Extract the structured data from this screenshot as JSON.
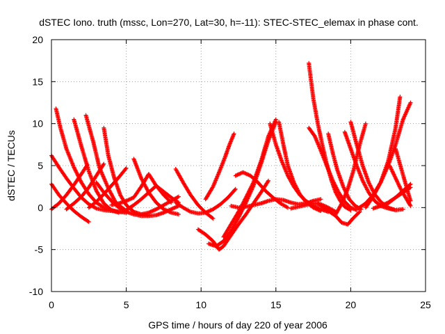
{
  "chart_data": {
    "type": "scatter",
    "title": "dSTEC Iono. truth (mssc, Lon=270, Lat=30, h=-11): STEC-STEC_elemax in phase cont.",
    "xlabel": "GPS time / hours of day 220 of year 2006",
    "ylabel": "dSTEC  / TECUs",
    "xlim": [
      0,
      25
    ],
    "ylim": [
      -10,
      20
    ],
    "xticks": [
      0,
      5,
      10,
      15,
      20,
      25
    ],
    "yticks": [
      -10,
      -5,
      0,
      5,
      10,
      15,
      20
    ],
    "grid": true,
    "marker": "plus",
    "color": "#ff0000",
    "series": [
      {
        "x": [
          0.0,
          0.5,
          1.0,
          1.5,
          2.0,
          2.5,
          3.0,
          3.5,
          4.0,
          4.5,
          5.0
        ],
        "y": [
          6.2,
          4.8,
          3.5,
          2.3,
          1.2,
          0.4,
          -0.1,
          -0.3,
          -0.4,
          -0.5,
          -0.6
        ]
      },
      {
        "x": [
          0.0,
          0.5,
          1.0,
          1.5,
          2.0,
          2.5
        ],
        "y": [
          2.8,
          1.5,
          0.5,
          -0.4,
          -1.1,
          -1.7
        ]
      },
      {
        "x": [
          0.0,
          0.5,
          1.0,
          1.5,
          2.0,
          2.4
        ],
        "y": [
          -0.2,
          0.5,
          1.5,
          2.7,
          4.0,
          5.1
        ]
      },
      {
        "x": [
          0.3,
          0.6,
          1.0,
          1.5,
          2.0,
          2.5,
          3.0,
          3.5,
          4.0,
          4.5,
          5.0
        ],
        "y": [
          11.8,
          9.5,
          7.0,
          4.8,
          3.0,
          1.6,
          0.6,
          0.0,
          -0.3,
          -0.5,
          -0.6
        ]
      },
      {
        "x": [
          1.5,
          2.0,
          2.5,
          3.0,
          3.5,
          4.0,
          4.5
        ],
        "y": [
          10.5,
          7.3,
          4.3,
          2.0,
          0.5,
          -0.3,
          -0.6
        ]
      },
      {
        "x": [
          1.0,
          1.5,
          2.0,
          2.5,
          3.0,
          3.5
        ],
        "y": [
          -0.2,
          0.5,
          1.3,
          2.4,
          3.8,
          5.2
        ]
      },
      {
        "x": [
          2.3,
          2.8,
          3.2,
          3.8,
          4.3,
          5.0
        ],
        "y": [
          11.0,
          7.8,
          4.8,
          2.3,
          0.6,
          -0.4
        ]
      },
      {
        "x": [
          3.0,
          3.5,
          4.0,
          4.5,
          5.0,
          5.5,
          6.0,
          6.5,
          7.0,
          7.5,
          8.0,
          8.5
        ],
        "y": [
          3.0,
          1.8,
          0.8,
          0.0,
          -0.5,
          -0.8,
          -1.0,
          -1.0,
          -0.9,
          -0.6,
          -0.2,
          0.2
        ]
      },
      {
        "x": [
          3.5,
          3.8,
          4.2,
          4.6,
          5.0,
          5.5,
          6.0,
          6.5
        ],
        "y": [
          9.5,
          6.2,
          3.5,
          1.5,
          0.3,
          -0.5,
          -0.8,
          -0.9
        ]
      },
      {
        "x": [
          2.5,
          3.0,
          3.5,
          4.0,
          4.5,
          5.0
        ],
        "y": [
          0.0,
          0.7,
          1.6,
          2.6,
          3.6,
          4.7
        ]
      },
      {
        "x": [
          4.0,
          4.5,
          5.0,
          5.5,
          6.0,
          6.5,
          7.0,
          7.5,
          8.0
        ],
        "y": [
          0.3,
          0.5,
          0.8,
          1.2,
          2.5,
          4.0,
          2.6,
          1.5,
          0.6
        ]
      },
      {
        "x": [
          5.5,
          6.0,
          6.5,
          7.0,
          7.5,
          8.0,
          8.5
        ],
        "y": [
          5.8,
          3.5,
          1.8,
          0.6,
          -0.2,
          -0.6,
          -0.8
        ]
      },
      {
        "x": [
          5.0,
          5.5,
          6.0,
          6.5,
          7.0,
          7.5,
          8.0,
          8.5
        ],
        "y": [
          -0.3,
          0.3,
          1.0,
          1.8,
          2.6,
          1.9,
          1.2,
          0.6
        ]
      },
      {
        "x": [
          6.0,
          6.5,
          7.0,
          7.5,
          8.0,
          8.5
        ],
        "y": [
          -0.8,
          -0.6,
          -0.2,
          0.3,
          0.8,
          1.3
        ]
      },
      {
        "x": [
          8.3,
          8.8,
          9.3,
          9.8,
          10.3,
          10.8
        ],
        "y": [
          4.6,
          3.0,
          1.5,
          0.3,
          -0.6,
          -1.3
        ]
      },
      {
        "x": [
          8.3,
          8.8,
          9.3,
          9.8,
          10.3,
          10.8,
          11.3,
          11.8,
          12.3
        ],
        "y": [
          0.6,
          0.0,
          -0.5,
          -0.7,
          -0.6,
          -0.2,
          0.4,
          1.2,
          2.2
        ]
      },
      {
        "x": [
          9.8,
          10.3,
          10.8,
          11.2,
          11.5,
          12.0,
          12.5,
          13.0,
          13.5,
          14.0,
          14.5
        ],
        "y": [
          -2.6,
          -3.2,
          -4.0,
          -5.0,
          -4.6,
          -3.3,
          -2.0,
          -0.8,
          0.5,
          1.8,
          3.2
        ]
      },
      {
        "x": [
          10.5,
          11.0,
          11.5,
          12.0,
          12.5,
          13.0,
          13.5,
          14.0,
          14.5,
          15.0
        ],
        "y": [
          -4.3,
          -4.6,
          -4.0,
          -2.8,
          -1.2,
          0.6,
          2.6,
          5.2,
          8.0,
          10.2
        ]
      },
      {
        "x": [
          10.3,
          10.8,
          11.2,
          11.6,
          11.9,
          12.2
        ],
        "y": [
          1.0,
          2.5,
          4.2,
          6.0,
          7.5,
          8.8
        ]
      },
      {
        "x": [
          11.5,
          12.0,
          12.5,
          13.0,
          13.5,
          14.0,
          14.5,
          15.0
        ],
        "y": [
          -3.5,
          -2.0,
          -0.5,
          1.2,
          3.0,
          5.5,
          8.5,
          10.5
        ]
      },
      {
        "x": [
          12.0,
          12.5,
          13.0,
          13.5,
          14.0,
          14.5,
          15.0,
          15.5,
          16.0,
          16.5,
          17.0,
          17.5,
          18.0
        ],
        "y": [
          0.2,
          0.0,
          0.1,
          0.3,
          0.5,
          0.8,
          1.0,
          0.9,
          0.6,
          0.4,
          0.5,
          0.8,
          1.0
        ]
      },
      {
        "x": [
          12.3,
          12.8,
          13.3,
          13.8,
          14.3,
          14.8,
          15.3,
          15.8
        ],
        "y": [
          3.8,
          4.2,
          3.8,
          3.0,
          2.0,
          1.2,
          0.5,
          0.0
        ]
      },
      {
        "x": [
          14.6,
          15.0,
          15.4,
          15.8,
          16.2,
          16.6,
          17.0,
          17.5,
          18.0,
          18.5
        ],
        "y": [
          10.0,
          7.5,
          5.5,
          3.8,
          2.5,
          1.5,
          0.8,
          0.2,
          -0.2,
          -0.5
        ]
      },
      {
        "x": [
          15.2,
          15.5,
          15.8,
          16.2,
          16.6,
          17.0,
          17.5,
          18.0
        ],
        "y": [
          10.2,
          7.5,
          5.0,
          3.0,
          1.6,
          0.7,
          0.0,
          -0.4
        ]
      },
      {
        "x": [
          16.0,
          16.5,
          17.0,
          17.5,
          18.0,
          18.5,
          19.0
        ],
        "y": [
          -0.1,
          0.1,
          0.3,
          0.5,
          0.4,
          0.0,
          -0.5
        ]
      },
      {
        "x": [
          17.2,
          17.5,
          17.8,
          18.1,
          18.4,
          18.7,
          19.0,
          19.3,
          19.6,
          20.0
        ],
        "y": [
          17.2,
          13.0,
          10.0,
          7.5,
          5.2,
          3.3,
          1.8,
          0.8,
          0.1,
          -0.3
        ]
      },
      {
        "x": [
          17.2,
          17.6,
          18.0,
          18.4,
          18.8,
          19.2,
          19.6,
          20.0,
          20.4
        ],
        "y": [
          9.5,
          8.5,
          6.8,
          5.0,
          3.2,
          1.8,
          0.7,
          0.0,
          -0.3
        ]
      },
      {
        "x": [
          17.8,
          18.2,
          18.6,
          19.0,
          19.4,
          19.8,
          20.2,
          20.6
        ],
        "y": [
          0.5,
          0.0,
          -0.5,
          -1.0,
          -1.8,
          -2.0,
          -1.2,
          -0.5
        ]
      },
      {
        "x": [
          18.5,
          18.8,
          19.1,
          19.5,
          19.9,
          20.3,
          20.7
        ],
        "y": [
          8.8,
          6.5,
          4.5,
          2.5,
          1.0,
          0.2,
          -0.2
        ]
      },
      {
        "x": [
          19.0,
          19.4,
          19.8,
          20.2,
          20.6,
          21.0
        ],
        "y": [
          -0.8,
          0.5,
          2.2,
          4.5,
          7.5,
          10.0
        ]
      },
      {
        "x": [
          20.0,
          20.4,
          20.8,
          21.2,
          21.6,
          22.0,
          22.5,
          23.0
        ],
        "y": [
          10.2,
          7.5,
          5.0,
          3.0,
          1.6,
          0.7,
          0.0,
          -0.3
        ]
      },
      {
        "x": [
          19.6,
          20.0,
          20.4,
          20.8,
          21.2,
          21.6,
          22.0,
          22.5,
          23.0,
          23.5
        ],
        "y": [
          9.0,
          7.0,
          5.0,
          3.2,
          1.8,
          0.8,
          0.2,
          -0.1,
          -0.3,
          -0.2
        ]
      },
      {
        "x": [
          20.5,
          21.0,
          21.5,
          22.0,
          22.5,
          23.0,
          23.5,
          24.0
        ],
        "y": [
          -0.1,
          0.5,
          1.5,
          3.0,
          5.0,
          7.5,
          10.5,
          12.5
        ]
      },
      {
        "x": [
          21.0,
          21.5,
          22.0,
          22.5,
          23.0,
          23.3
        ],
        "y": [
          0.0,
          1.3,
          3.0,
          5.5,
          9.5,
          13.2
        ]
      },
      {
        "x": [
          22.6,
          23.0,
          23.4,
          23.8,
          24.0
        ],
        "y": [
          5.0,
          3.5,
          2.0,
          0.8,
          0.2
        ]
      },
      {
        "x": [
          23.0,
          23.4,
          23.8,
          24.0
        ],
        "y": [
          7.0,
          4.5,
          2.0,
          0.8
        ]
      },
      {
        "x": [
          22.5,
          23.0,
          23.5,
          24.0
        ],
        "y": [
          0.5,
          1.2,
          1.8,
          2.4
        ]
      },
      {
        "x": [
          21.5,
          22.0,
          22.5,
          23.0,
          23.5,
          24.0
        ],
        "y": [
          -0.1,
          0.2,
          0.6,
          1.2,
          2.0,
          2.8
        ]
      }
    ]
  }
}
